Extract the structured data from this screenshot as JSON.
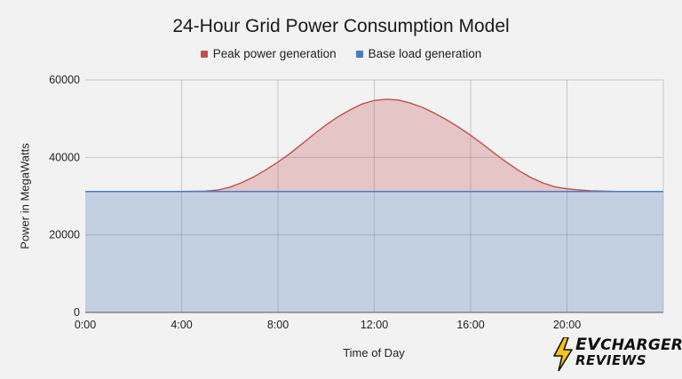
{
  "chart_data": {
    "type": "area",
    "title": "24-Hour Grid Power Consumption Model",
    "xlabel": "Time of Day",
    "ylabel": "Power in MegaWatts",
    "x_range": [
      0,
      24
    ],
    "ylim": [
      0,
      60000
    ],
    "yticks": [
      "0",
      "20000",
      "40000",
      "60000"
    ],
    "xticks": [
      "0:00",
      "4:00",
      "8:00",
      "12:00",
      "16:00",
      "20:00"
    ],
    "grid": true,
    "legend_position": "top",
    "x": [
      0,
      1,
      2,
      3,
      4,
      5,
      5.5,
      6,
      6.5,
      7,
      7.5,
      8,
      8.5,
      9,
      9.5,
      10,
      10.5,
      11,
      11.5,
      12,
      12.5,
      13,
      13.5,
      14,
      14.5,
      15,
      15.5,
      16,
      16.5,
      17,
      17.5,
      18,
      18.5,
      19,
      19.5,
      20,
      20.5,
      21,
      22,
      23,
      24
    ],
    "series": [
      {
        "name": "Peak power generation",
        "color": "#c0504d",
        "fill": "#e6c5c7",
        "values": [
          31200,
          31200,
          31200,
          31200,
          31200,
          31300,
          31600,
          32300,
          33500,
          35000,
          36800,
          38800,
          41000,
          43500,
          46000,
          48400,
          50500,
          52300,
          53800,
          54700,
          55000,
          54800,
          54000,
          52900,
          51400,
          49700,
          47800,
          45700,
          43400,
          41000,
          38700,
          36600,
          34800,
          33400,
          32400,
          31900,
          31600,
          31400,
          31200,
          31200,
          31200
        ]
      },
      {
        "name": "Base load generation",
        "color": "#4a7ac4",
        "fill": "#c3d0e2",
        "values": [
          31200,
          31200,
          31200,
          31200,
          31200,
          31200,
          31200,
          31200,
          31200,
          31200,
          31200,
          31200,
          31200,
          31200,
          31200,
          31200,
          31200,
          31200,
          31200,
          31200,
          31200,
          31200,
          31200,
          31200,
          31200,
          31200,
          31200,
          31200,
          31200,
          31200,
          31200,
          31200,
          31200,
          31200,
          31200,
          31200,
          31200,
          31200,
          31200,
          31200,
          31200
        ]
      }
    ]
  },
  "logo": {
    "line1_prefix": "EV",
    "line1_rest": "CHARGER",
    "line2": "REVIEWS",
    "bolt_color": "#f5c518"
  }
}
